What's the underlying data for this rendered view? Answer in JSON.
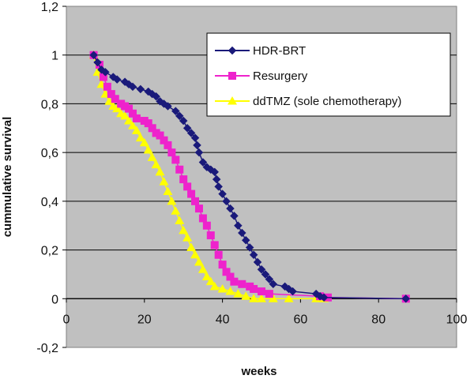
{
  "chart_data": {
    "type": "line",
    "xlabel": "weeks",
    "ylabel": "cummulative survival",
    "xlim": [
      0,
      100
    ],
    "ylim": [
      -0.2,
      1.2
    ],
    "x_ticks": [
      0,
      20,
      40,
      60,
      80,
      100
    ],
    "x_tick_labels": [
      "0",
      "20",
      "40",
      "60",
      "80",
      "100"
    ],
    "y_ticks": [
      -0.2,
      0,
      0.2,
      0.4,
      0.6,
      0.8,
      1,
      1.2
    ],
    "y_tick_labels": [
      "-0,2",
      "0",
      "0,2",
      "0,4",
      "0,6",
      "0,8",
      "1",
      "1,2"
    ],
    "grid": "horizontal",
    "legend_position": "top-right",
    "plot_background": "#c0c0c0",
    "series": [
      {
        "name": "HDR-BRT",
        "color": "#1a1a7a",
        "marker": "diamond",
        "points": [
          [
            7,
            1
          ],
          [
            8,
            0.97
          ],
          [
            9,
            0.94
          ],
          [
            10,
            0.93
          ],
          [
            12,
            0.91
          ],
          [
            13,
            0.9
          ],
          [
            15,
            0.89
          ],
          [
            16,
            0.88
          ],
          [
            17,
            0.87
          ],
          [
            19,
            0.86
          ],
          [
            21,
            0.85
          ],
          [
            22,
            0.84
          ],
          [
            23,
            0.83
          ],
          [
            24,
            0.81
          ],
          [
            25,
            0.8
          ],
          [
            26,
            0.79
          ],
          [
            28,
            0.77
          ],
          [
            29,
            0.75
          ],
          [
            30,
            0.73
          ],
          [
            31,
            0.7
          ],
          [
            32,
            0.68
          ],
          [
            33,
            0.66
          ],
          [
            33.5,
            0.63
          ],
          [
            34,
            0.6
          ],
          [
            35,
            0.56
          ],
          [
            36,
            0.54
          ],
          [
            37,
            0.53
          ],
          [
            38,
            0.52
          ],
          [
            38.5,
            0.49
          ],
          [
            39,
            0.46
          ],
          [
            40,
            0.43
          ],
          [
            41,
            0.4
          ],
          [
            42,
            0.37
          ],
          [
            43,
            0.34
          ],
          [
            44,
            0.3
          ],
          [
            45,
            0.27
          ],
          [
            46,
            0.24
          ],
          [
            47,
            0.21
          ],
          [
            48,
            0.18
          ],
          [
            49,
            0.15
          ],
          [
            50,
            0.12
          ],
          [
            51,
            0.1
          ],
          [
            52,
            0.08
          ],
          [
            53,
            0.06
          ],
          [
            56,
            0.05
          ],
          [
            57,
            0.04
          ],
          [
            58,
            0.03
          ],
          [
            64,
            0.02
          ],
          [
            65,
            0.01
          ],
          [
            66,
            0.005
          ],
          [
            87,
            0
          ]
        ]
      },
      {
        "name": "Resurgery",
        "color": "#ee22cc",
        "marker": "square",
        "points": [
          [
            7,
            1
          ],
          [
            8.5,
            0.96
          ],
          [
            9.5,
            0.91
          ],
          [
            10.5,
            0.87
          ],
          [
            11.5,
            0.84
          ],
          [
            12.5,
            0.82
          ],
          [
            14,
            0.8
          ],
          [
            15,
            0.79
          ],
          [
            16,
            0.78
          ],
          [
            17,
            0.76
          ],
          [
            18,
            0.74
          ],
          [
            20,
            0.73
          ],
          [
            21,
            0.72
          ],
          [
            22,
            0.7
          ],
          [
            23,
            0.68
          ],
          [
            24,
            0.67
          ],
          [
            25,
            0.65
          ],
          [
            26,
            0.63
          ],
          [
            27,
            0.6
          ],
          [
            28,
            0.57
          ],
          [
            29,
            0.53
          ],
          [
            30,
            0.49
          ],
          [
            31,
            0.46
          ],
          [
            32,
            0.43
          ],
          [
            33,
            0.4
          ],
          [
            34,
            0.37
          ],
          [
            35,
            0.33
          ],
          [
            36,
            0.3
          ],
          [
            37,
            0.26
          ],
          [
            38,
            0.22
          ],
          [
            39,
            0.18
          ],
          [
            40,
            0.14
          ],
          [
            41,
            0.11
          ],
          [
            42,
            0.09
          ],
          [
            43,
            0.07
          ],
          [
            45,
            0.06
          ],
          [
            47,
            0.05
          ],
          [
            48,
            0.04
          ],
          [
            50,
            0.03
          ],
          [
            52,
            0.02
          ],
          [
            65,
            0.01
          ],
          [
            67,
            0.005
          ],
          [
            87,
            0
          ]
        ]
      },
      {
        "name": "ddTMZ (sole chemotherapy)",
        "color": "#ffff00",
        "marker": "triangle",
        "points": [
          [
            7,
            1
          ],
          [
            8,
            0.93
          ],
          [
            9,
            0.88
          ],
          [
            10,
            0.84
          ],
          [
            11,
            0.81
          ],
          [
            12,
            0.79
          ],
          [
            13,
            0.78
          ],
          [
            14,
            0.76
          ],
          [
            15,
            0.75
          ],
          [
            16,
            0.73
          ],
          [
            17,
            0.71
          ],
          [
            18,
            0.69
          ],
          [
            19,
            0.66
          ],
          [
            20,
            0.64
          ],
          [
            21,
            0.61
          ],
          [
            22,
            0.58
          ],
          [
            23,
            0.55
          ],
          [
            24,
            0.52
          ],
          [
            25,
            0.48
          ],
          [
            26,
            0.44
          ],
          [
            27,
            0.4
          ],
          [
            28,
            0.36
          ],
          [
            29,
            0.32
          ],
          [
            30,
            0.28
          ],
          [
            31,
            0.25
          ],
          [
            32,
            0.21
          ],
          [
            33,
            0.18
          ],
          [
            34,
            0.15
          ],
          [
            35,
            0.12
          ],
          [
            36,
            0.09
          ],
          [
            37,
            0.07
          ],
          [
            38,
            0.05
          ],
          [
            40,
            0.04
          ],
          [
            42,
            0.03
          ],
          [
            44,
            0.02
          ],
          [
            46,
            0.01
          ],
          [
            48,
            0
          ],
          [
            50,
            0
          ],
          [
            53,
            0
          ],
          [
            57,
            0
          ],
          [
            64,
            0
          ],
          [
            66,
            0
          ]
        ]
      }
    ]
  }
}
